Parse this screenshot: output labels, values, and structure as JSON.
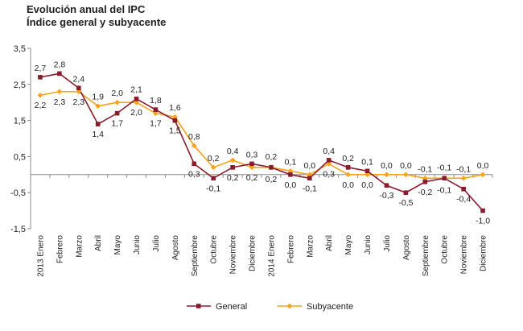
{
  "header": {
    "title": "Evolución anual del IPC",
    "subtitle": "Índice general y subyacente"
  },
  "chart_data": {
    "type": "line",
    "title": "Evolución anual del IPC",
    "subtitle": "Índice general y subyacente",
    "ylim": [
      -1.5,
      3.5
    ],
    "yticks": [
      3.5,
      2.5,
      1.5,
      0.5,
      -0.5,
      -1.5
    ],
    "ytick_labels": [
      "3,5",
      "2,5",
      "1,5",
      "0,5",
      "-0,5",
      "-1,5"
    ],
    "categories": [
      "2013 Enero",
      "Febrero",
      "Marzo",
      "Abril",
      "Mayo",
      "Junio",
      "Julio",
      "Agosto",
      "Septiembre",
      "Octubre",
      "Noviembre",
      "Diciembre",
      "2014 Enero",
      "Febrero",
      "Marzo",
      "Abril",
      "Mayo",
      "Junio",
      "Julio",
      "Agosto",
      "Septiembre",
      "Octubre",
      "Noviembre",
      "Diciembre"
    ],
    "series": [
      {
        "name": "General",
        "color": "#8B1A2B",
        "marker": "square",
        "values": [
          2.7,
          2.8,
          2.4,
          1.4,
          1.7,
          2.1,
          1.8,
          1.5,
          0.3,
          -0.1,
          0.2,
          0.3,
          0.2,
          0.0,
          -0.1,
          0.4,
          0.2,
          0.1,
          -0.3,
          -0.5,
          -0.2,
          -0.1,
          -0.4,
          -1.0
        ],
        "labels": [
          "2,7",
          "2,8",
          "2,4",
          "1,4",
          "1,7",
          "2,1",
          "1,8",
          "1,5",
          "0,3",
          "-0,1",
          "0,2",
          "0,3",
          "0,2",
          "0,0",
          "-0,1",
          "0,4",
          "0,2",
          "0,1",
          "-0,3",
          "-0,5",
          "-0,2",
          "-0,1",
          "-0,4",
          "-1,0"
        ]
      },
      {
        "name": "Subyacente",
        "color": "#F7A21B",
        "marker": "diamond",
        "values": [
          2.2,
          2.3,
          2.3,
          1.9,
          2.0,
          2.0,
          1.7,
          1.6,
          0.8,
          0.2,
          0.4,
          0.2,
          0.2,
          0.1,
          0.0,
          0.3,
          0.0,
          0.0,
          0.0,
          0.0,
          -0.1,
          -0.1,
          -0.1,
          0.0
        ],
        "labels": [
          "2,2",
          "2,3",
          "2,3",
          "1,9",
          "2,0",
          "2,0",
          "1,7",
          "1,6",
          "0,8",
          "0,2",
          "0,4",
          "0,2",
          "0,2",
          "0,1",
          "0,0",
          "0,3",
          "0,0",
          "0,0",
          "0,0",
          "0,0",
          "-0,1",
          "-0,1",
          "-0,1",
          "0,0"
        ]
      }
    ],
    "legend_position": "bottom",
    "grid": false
  }
}
